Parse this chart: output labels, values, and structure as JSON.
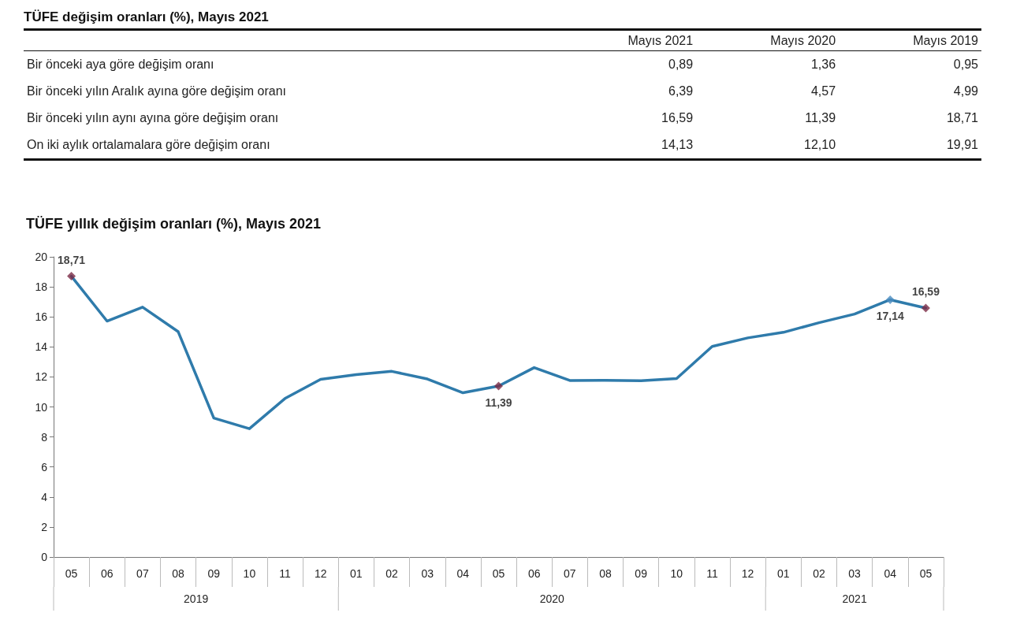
{
  "chart_data": [
    {
      "type": "other",
      "title": "TÜFE değişim oranları (%), Mayıs 2021",
      "categories": [
        "Bir önceki aya göre değişim oranı",
        "Bir önceki yılın Aralık ayına göre değişim oranı",
        "Bir önceki yılın aynı ayına göre değişim oranı",
        "On iki aylık ortalamalara göre değişim oranı"
      ],
      "series": [
        {
          "name": "Mayıs 2021",
          "values": [
            0.89,
            6.39,
            16.59,
            14.13
          ],
          "value_labels": [
            "0,89",
            "6,39",
            "16,59",
            "14,13"
          ]
        },
        {
          "name": "Mayıs 2020",
          "values": [
            1.36,
            4.57,
            11.39,
            12.1
          ],
          "value_labels": [
            "1,36",
            "4,57",
            "11,39",
            "12,10"
          ]
        },
        {
          "name": "Mayıs 2019",
          "values": [
            0.95,
            4.99,
            18.71,
            19.91
          ],
          "value_labels": [
            "0,95",
            "4,99",
            "18,71",
            "19,91"
          ]
        }
      ]
    },
    {
      "type": "line",
      "title": "TÜFE yıllık değişim oranları (%), Mayıs 2021",
      "categories": [
        "05",
        "06",
        "07",
        "08",
        "09",
        "10",
        "11",
        "12",
        "01",
        "02",
        "03",
        "04",
        "05",
        "06",
        "07",
        "08",
        "09",
        "10",
        "11",
        "12",
        "01",
        "02",
        "03",
        "04",
        "05"
      ],
      "annotations": [
        "2019",
        "2020",
        "2021"
      ],
      "ylim": [
        0,
        20
      ],
      "yticks": [
        0,
        2,
        4,
        6,
        8,
        10,
        12,
        14,
        16,
        18,
        20
      ],
      "grid": false,
      "series": [
        {
          "type": "line",
          "color": "#2f7bab",
          "marker": "none",
          "values": [
            18.71,
            15.72,
            16.65,
            15.01,
            9.26,
            8.55,
            10.56,
            11.84,
            12.15,
            12.37,
            11.86,
            10.94,
            11.39,
            12.62,
            11.76,
            11.77,
            11.75,
            11.89,
            14.03,
            14.6,
            14.97,
            15.61,
            16.19,
            17.14,
            16.59
          ]
        },
        {
          "type": "scatter",
          "color": "#7a2a45",
          "marker": "diamond",
          "values": [
            18.71,
            null,
            null,
            null,
            null,
            null,
            null,
            null,
            null,
            null,
            null,
            null,
            11.39,
            null,
            null,
            null,
            null,
            null,
            null,
            null,
            null,
            null,
            null,
            null,
            16.59
          ],
          "value_labels": [
            "18,71",
            null,
            null,
            null,
            null,
            null,
            null,
            null,
            null,
            null,
            null,
            null,
            "11,39",
            null,
            null,
            null,
            null,
            null,
            null,
            null,
            null,
            null,
            null,
            null,
            "16,59"
          ]
        },
        {
          "type": "scatter",
          "color": "#4a8cc0",
          "marker": "diamond",
          "values": [
            null,
            null,
            null,
            null,
            null,
            null,
            null,
            null,
            null,
            null,
            null,
            null,
            null,
            null,
            null,
            null,
            null,
            null,
            null,
            null,
            null,
            null,
            null,
            17.14,
            null
          ],
          "value_labels": [
            null,
            null,
            null,
            null,
            null,
            null,
            null,
            null,
            null,
            null,
            null,
            null,
            null,
            null,
            null,
            null,
            null,
            null,
            null,
            null,
            null,
            null,
            null,
            "17,14",
            null
          ]
        }
      ]
    }
  ]
}
